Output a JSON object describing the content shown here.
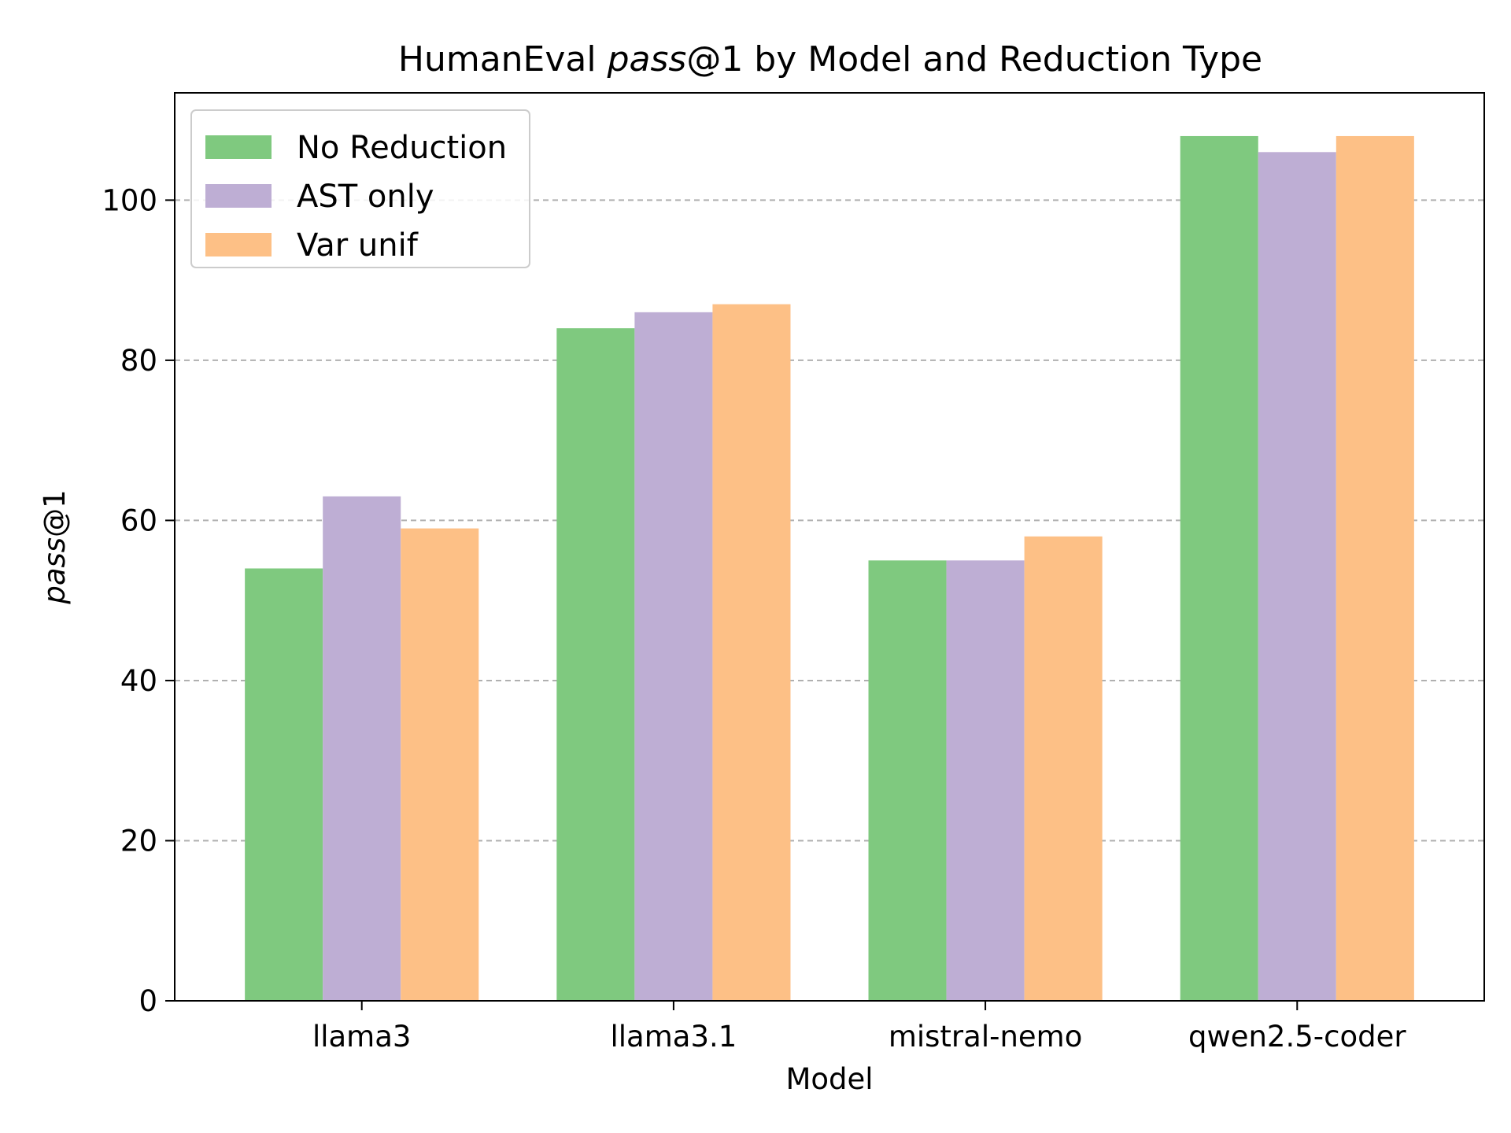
{
  "chart_data": {
    "type": "bar",
    "title_prefix": "HumanEval ",
    "title_italic": "pass",
    "title_suffix": "@1 by Model and Reduction Type",
    "xlabel": "Model",
    "ylabel_italic": "pass",
    "ylabel_suffix": "@1",
    "categories": [
      "llama3",
      "llama3.1",
      "mistral-nemo",
      "qwen2.5-coder"
    ],
    "series": [
      {
        "name": "No Reduction",
        "color": "#7fc97f",
        "values": [
          54,
          84,
          55,
          108
        ]
      },
      {
        "name": "AST only",
        "color": "#beaed4",
        "values": [
          63,
          86,
          55,
          106
        ]
      },
      {
        "name": "Var unif",
        "color": "#fdc086",
        "values": [
          59,
          87,
          58,
          108
        ]
      }
    ],
    "ylim": [
      0,
      113.4
    ],
    "yticks": [
      0,
      20,
      40,
      60,
      80,
      100
    ],
    "grid": "y-dashed",
    "legend_position": "upper-left"
  }
}
